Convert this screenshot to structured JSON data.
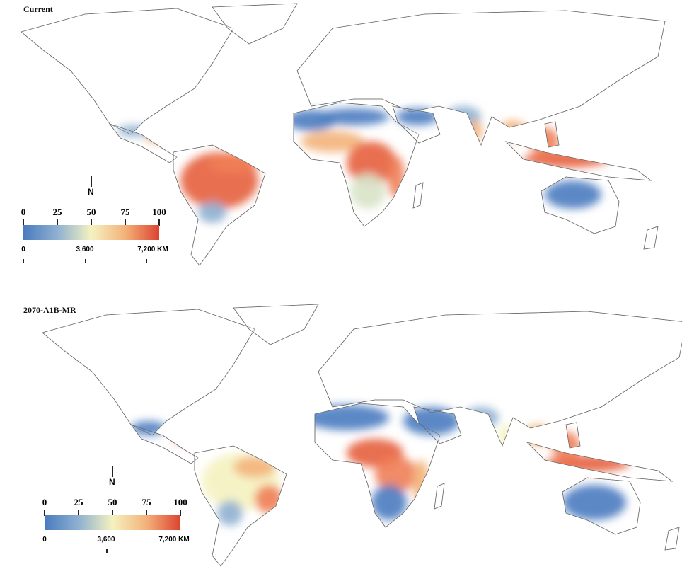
{
  "panels": [
    {
      "title": "Current",
      "scenario": "current"
    },
    {
      "title": "2070-A1B-MR",
      "scenario": "future"
    }
  ],
  "legend": {
    "ticks": [
      "0",
      "25",
      "50",
      "75",
      "100"
    ],
    "colors": [
      "#4a7bc0",
      "#8fb0d0",
      "#f4f2c0",
      "#f3b27a",
      "#dd4330"
    ]
  },
  "scale_bar": {
    "labels": [
      "0",
      "3,600",
      "7,200 KM"
    ]
  },
  "north_arrow": {
    "label": "N"
  }
}
